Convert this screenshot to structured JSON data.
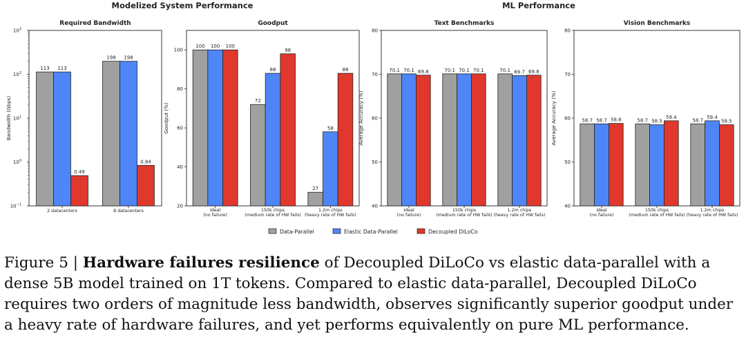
{
  "groups": {
    "left_title": "Modelized System Performance",
    "right_title": "ML Performance"
  },
  "chart_data": [
    {
      "id": "bandwidth",
      "type": "bar",
      "title": "Required Bandwidth",
      "ylabel": "Bandwidth (Gbps)",
      "yscale": "log",
      "ylim": [
        0.1,
        1000
      ],
      "yticks": [
        0.1,
        1,
        10,
        100,
        1000
      ],
      "ytick_labels": [
        {
          "base": "10",
          "exp": "−1"
        },
        {
          "base": "10",
          "exp": "0"
        },
        {
          "base": "10",
          "exp": "1"
        },
        {
          "base": "10",
          "exp": "2"
        },
        {
          "base": "10",
          "exp": "3"
        }
      ],
      "categories": [
        [
          "2 datacenters"
        ],
        [
          "8 datacenters"
        ]
      ],
      "series": [
        {
          "name": "Data-Parallel",
          "values": [
            113,
            198
          ],
          "labels": [
            "113",
            "198"
          ]
        },
        {
          "name": "Elastic Data-Parallel",
          "values": [
            113,
            198
          ],
          "labels": [
            "113",
            "198"
          ]
        },
        {
          "name": "Decoupled DiLoCo",
          "values": [
            0.49,
            0.84
          ],
          "labels": [
            "0.49",
            "0.84"
          ]
        }
      ]
    },
    {
      "id": "goodput",
      "type": "bar",
      "title": "Goodput",
      "ylabel": "Goodput (%)",
      "yscale": "linear",
      "ylim": [
        20,
        110
      ],
      "yticks": [
        20,
        40,
        60,
        80,
        100
      ],
      "ytick_labels": [
        "20",
        "40",
        "60",
        "80",
        "100"
      ],
      "categories": [
        [
          "Ideal",
          "(no failure)"
        ],
        [
          "150k chips",
          "(medium rate of HW fails)"
        ],
        [
          "1.2m chips",
          "(heavy rate of HW fails)"
        ]
      ],
      "series": [
        {
          "name": "Data-Parallel",
          "values": [
            100,
            72,
            27
          ],
          "labels": [
            "100",
            "72",
            "27"
          ]
        },
        {
          "name": "Elastic Data-Parallel",
          "values": [
            100,
            88,
            58
          ],
          "labels": [
            "100",
            "88",
            "58"
          ]
        },
        {
          "name": "Decoupled DiLoCo",
          "values": [
            100,
            98,
            88
          ],
          "labels": [
            "100",
            "98",
            "88"
          ]
        }
      ]
    },
    {
      "id": "text",
      "type": "bar",
      "title": "Text Benchmarks",
      "ylabel": "Average Accuracy (%)",
      "yscale": "linear",
      "ylim": [
        40,
        80
      ],
      "yticks": [
        40,
        50,
        60,
        70,
        80
      ],
      "ytick_labels": [
        "40",
        "50",
        "60",
        "70",
        "80"
      ],
      "categories": [
        [
          "Ideal",
          "(no failure)"
        ],
        [
          "150k chips",
          "(medium rate of HW fails)"
        ],
        [
          "1.2m chips",
          "(heavy rate of HW fails)"
        ]
      ],
      "series": [
        {
          "name": "Data-Parallel",
          "values": [
            70.1,
            70.1,
            70.1
          ],
          "labels": [
            "70.1",
            "70.1",
            "70.1"
          ]
        },
        {
          "name": "Elastic Data-Parallel",
          "values": [
            70.1,
            70.1,
            69.7
          ],
          "labels": [
            "70.1",
            "70.1",
            "69.7"
          ]
        },
        {
          "name": "Decoupled DiLoCo",
          "values": [
            69.8,
            70.1,
            69.8
          ],
          "labels": [
            "69.8",
            "70.1",
            "69.8"
          ]
        }
      ]
    },
    {
      "id": "vision",
      "type": "bar",
      "title": "Vision Benchmarks",
      "ylabel": "Average Accuracy (%)",
      "yscale": "linear",
      "ylim": [
        40,
        80
      ],
      "yticks": [
        40,
        50,
        60,
        70,
        80
      ],
      "ytick_labels": [
        "40",
        "50",
        "60",
        "70",
        "80"
      ],
      "categories": [
        [
          "Ideal",
          "(no failure)"
        ],
        [
          "150k chips",
          "(medium rate of HW fails)"
        ],
        [
          "1.2m chips",
          "(heavy rate of HW fails)"
        ]
      ],
      "series": [
        {
          "name": "Data-Parallel",
          "values": [
            58.7,
            58.7,
            58.7
          ],
          "labels": [
            "58.7",
            "58.7",
            "58.7"
          ]
        },
        {
          "name": "Elastic Data-Parallel",
          "values": [
            58.7,
            58.5,
            59.4
          ],
          "labels": [
            "58.7",
            "58.5",
            "59.4"
          ]
        },
        {
          "name": "Decoupled DiLoCo",
          "values": [
            58.8,
            59.4,
            58.5
          ],
          "labels": [
            "58.8",
            "59.4",
            "58.5"
          ]
        }
      ]
    }
  ],
  "legend": [
    {
      "name": "Data-Parallel",
      "color": "#a0a0a0"
    },
    {
      "name": "Elastic Data-Parallel",
      "color": "#4f86f7"
    },
    {
      "name": "Decoupled DiLoCo",
      "color": "#e0382c"
    }
  ],
  "caption": {
    "lead": "Figure 5 | ",
    "bold": "Hardware failures resilience",
    "rest": " of Decoupled DiLoCo vs elastic data-parallel with a dense 5B model trained on 1T tokens. Compared to elastic data-parallel, Decoupled DiLoCo requires two orders of magnitude less bandwidth, observes significantly superior goodput under a heavy rate of hardware failures, and yet performs equivalently on pure ML performance."
  }
}
